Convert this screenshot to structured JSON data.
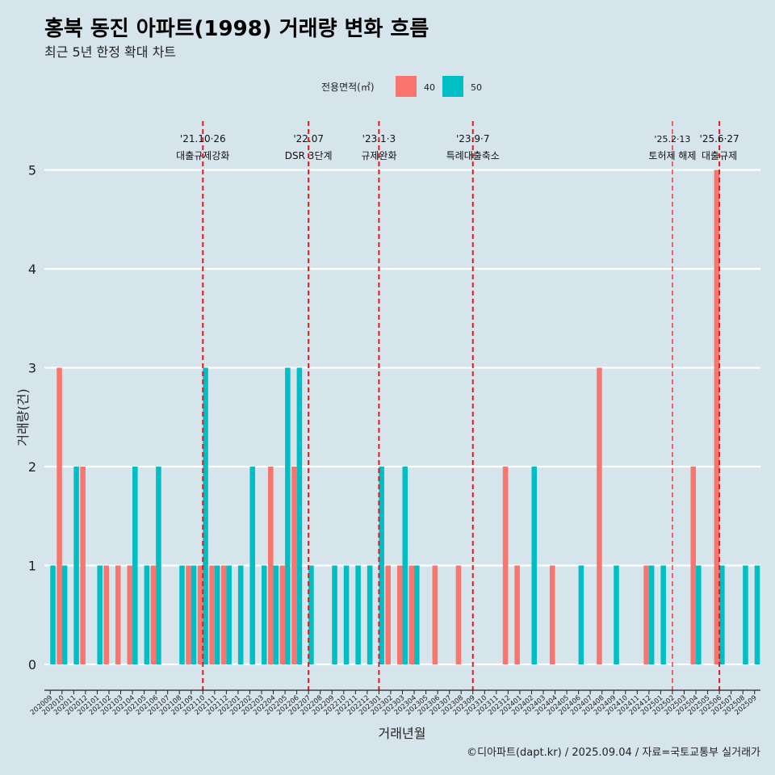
{
  "title": "홍북 동진 아파트(1998) 거래량 변화 흐름",
  "subtitle": "최근 5년 한정 확대 차트",
  "caption": "©디아파트(dapt.kr) / 2025.09.04 / 자료=국토교통부 실거래가",
  "colors": {
    "background": "#d6e4ec",
    "s40": "#f8766d",
    "s50": "#00bfc4",
    "gridline": "#ffffff",
    "event_line": "#e8161c"
  },
  "chart_data": {
    "type": "bar",
    "xlabel": "거래년월",
    "ylabel": "거래량(건)",
    "ylim": [
      0,
      5
    ],
    "yticks": [
      0,
      1,
      2,
      3,
      4,
      5
    ],
    "grid": true,
    "legend": {
      "title": "전용면적(㎡)",
      "position": "top"
    },
    "categories": [
      "202009",
      "202010",
      "202011",
      "202012",
      "202101",
      "202102",
      "202103",
      "202104",
      "202105",
      "202106",
      "202107",
      "202108",
      "202109",
      "202110",
      "202111",
      "202112",
      "202201",
      "202202",
      "202203",
      "202204",
      "202205",
      "202206",
      "202207",
      "202208",
      "202209",
      "202210",
      "202211",
      "202212",
      "202301",
      "202302",
      "202303",
      "202304",
      "202305",
      "202306",
      "202307",
      "202308",
      "202309",
      "202310",
      "202311",
      "202312",
      "202401",
      "202402",
      "202403",
      "202404",
      "202405",
      "202406",
      "202407",
      "202408",
      "202409",
      "202410",
      "202411",
      "202412",
      "202501",
      "202502",
      "202503",
      "202504",
      "202505",
      "202506",
      "202507",
      "202508",
      "202509"
    ],
    "series": [
      {
        "name": "40",
        "color": "#f8766d",
        "values": [
          0,
          3,
          0,
          2,
          0,
          1,
          1,
          1,
          0,
          1,
          0,
          0,
          1,
          1,
          1,
          1,
          0,
          0,
          0,
          2,
          1,
          2,
          0,
          0,
          0,
          0,
          0,
          0,
          0,
          1,
          1,
          1,
          0,
          1,
          0,
          1,
          0,
          0,
          0,
          2,
          1,
          0,
          0,
          1,
          0,
          0,
          0,
          3,
          0,
          0,
          0,
          1,
          0,
          0,
          0,
          2,
          0,
          5,
          0,
          0,
          0
        ]
      },
      {
        "name": "50",
        "color": "#00bfc4",
        "values": [
          1,
          1,
          2,
          0,
          1,
          0,
          0,
          2,
          1,
          2,
          0,
          1,
          1,
          3,
          1,
          1,
          1,
          2,
          1,
          1,
          3,
          3,
          1,
          0,
          1,
          1,
          1,
          1,
          2,
          0,
          2,
          1,
          0,
          0,
          0,
          0,
          0,
          0,
          0,
          0,
          0,
          2,
          0,
          0,
          0,
          1,
          0,
          0,
          1,
          0,
          0,
          1,
          1,
          0,
          0,
          1,
          0,
          1,
          0,
          1,
          1
        ]
      }
    ],
    "annotations": [
      {
        "at": "202110",
        "date": "'21.10·26",
        "label": "대출규제강화",
        "style": "thick"
      },
      {
        "at": "202207",
        "date": "'22.07",
        "label": "DSR 3단계",
        "style": "thick"
      },
      {
        "at": "202301",
        "date": "'23.1·3",
        "label": "규제완화",
        "style": "thick"
      },
      {
        "at": "202309",
        "date": "'23.9·7",
        "label": "특례대출축소",
        "style": "thick"
      },
      {
        "at": "202502",
        "date": "'25.2·13",
        "label": "토허제 해제",
        "style": "thin"
      },
      {
        "at": "202506",
        "date": "'25.6·27",
        "label": "대출규제",
        "style": "thick"
      }
    ]
  }
}
